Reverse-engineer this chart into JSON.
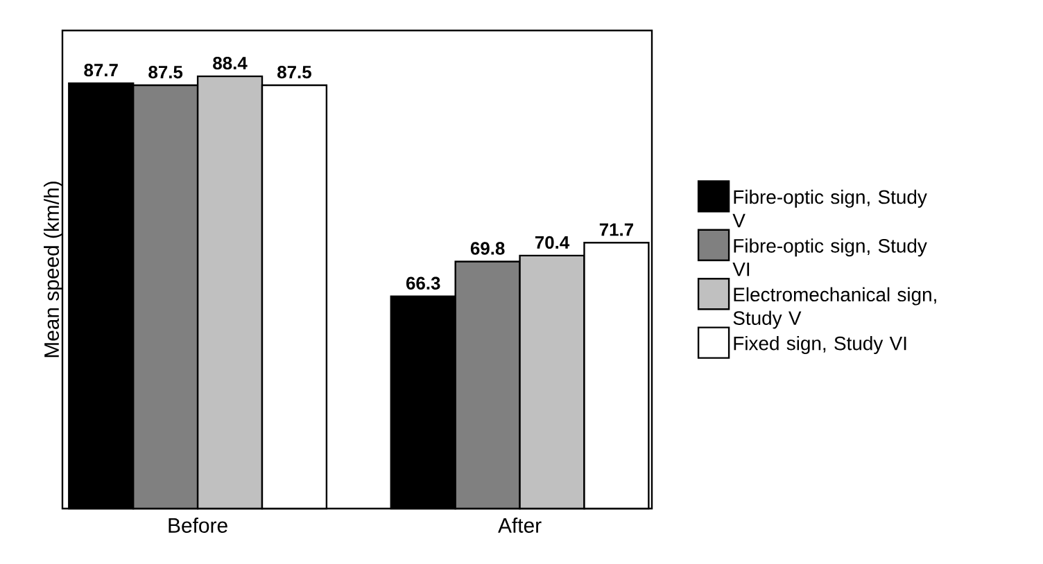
{
  "chart_data": {
    "type": "bar",
    "ylabel": "Mean speed (km/h)",
    "categories": [
      "Before",
      "After"
    ],
    "series": [
      {
        "name": "Fibre-optic sign, Study V",
        "color": "#000000",
        "values": [
          87.7,
          66.3
        ]
      },
      {
        "name": "Fibre-optic sign, Study VI",
        "color": "#808080",
        "values": [
          87.5,
          69.8
        ]
      },
      {
        "name": "Electromechanical sign, Study V",
        "color": "#c0c0c0",
        "values": [
          88.4,
          70.4
        ]
      },
      {
        "name": "Fixed sign, Study VI",
        "color": "#ffffff",
        "values": [
          87.5,
          71.7
        ]
      }
    ],
    "ylim": [
      45,
      93
    ],
    "data_labels": true,
    "legend": "right",
    "grid": false
  }
}
